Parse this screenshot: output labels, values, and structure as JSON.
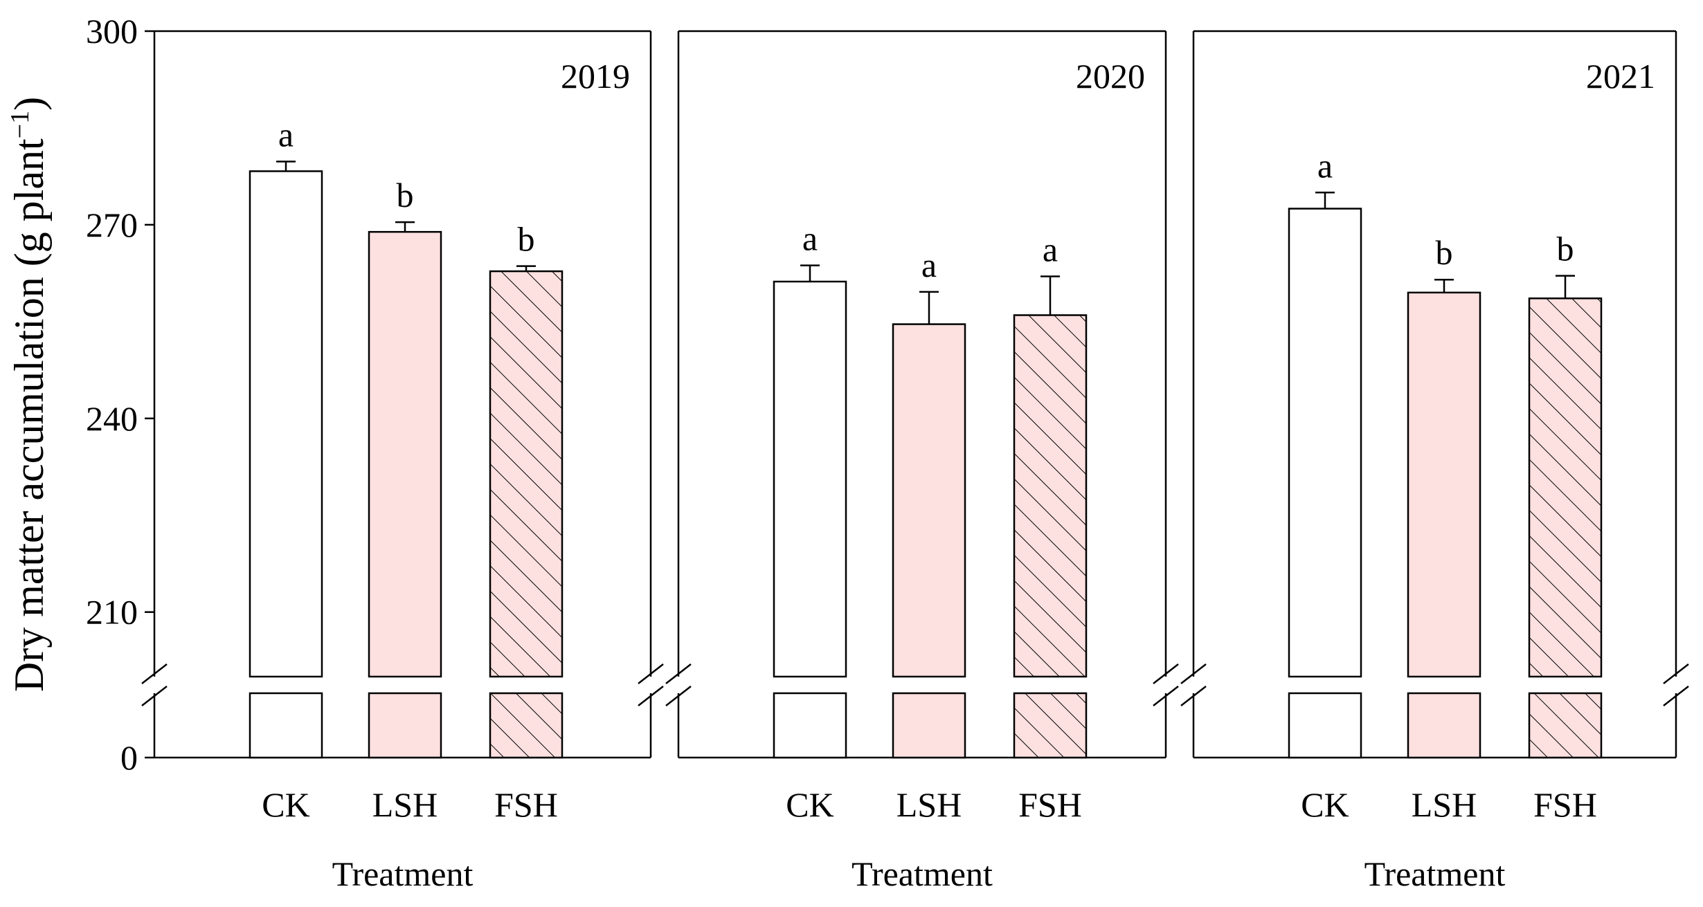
{
  "chart_data": {
    "type": "bar",
    "ylabel": "Dry matter accumulation (g plant",
    "ylabel_superscript": "−1",
    "ylabel_close": ")",
    "xlabel": "Treatment",
    "y_ticks": [
      0,
      210,
      240,
      270,
      300
    ],
    "y_break": {
      "lower": [
        0,
        10
      ],
      "upper": [
        200,
        300
      ]
    },
    "categories": [
      "CK",
      "LSH",
      "FSH"
    ],
    "colors": {
      "CK": "#ffffff",
      "LSH": "#fde0e0",
      "FSH": "#fde0e0",
      "stroke": "#000000"
    },
    "fill_patterns": [
      "plain",
      "plain",
      "hatched"
    ],
    "panels": [
      {
        "year": "2019",
        "values": [
          278.3,
          268.9,
          262.8
        ],
        "errors": [
          1.5,
          1.5,
          0.8
        ],
        "significance": [
          "a",
          "b",
          "b"
        ]
      },
      {
        "year": "2020",
        "values": [
          261.2,
          254.6,
          256.0
        ],
        "errors": [
          2.5,
          5.0,
          6.0
        ],
        "significance": [
          "a",
          "a",
          "a"
        ]
      },
      {
        "year": "2021",
        "values": [
          272.5,
          259.5,
          258.6
        ],
        "errors": [
          2.5,
          2.0,
          3.5
        ],
        "significance": [
          "a",
          "b",
          "b"
        ]
      }
    ]
  }
}
